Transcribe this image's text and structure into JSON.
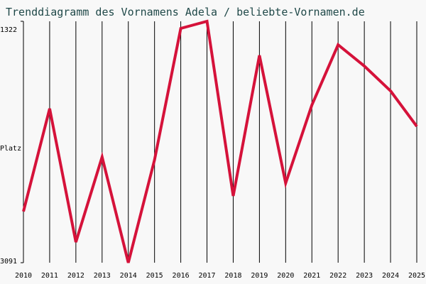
{
  "chart_data": {
    "type": "line",
    "title": "Trenddiagramm des Vornamens Adela / beliebte-Vornamen.de",
    "y_label": "Platz",
    "categories": [
      "2010",
      "2011",
      "2012",
      "2013",
      "2014",
      "2015",
      "2016",
      "2017",
      "2018",
      "2019",
      "2020",
      "2021",
      "2022",
      "2023",
      "2024",
      "2025"
    ],
    "series": [
      {
        "name": "Adela",
        "color": "#d5123a",
        "values": [
          2716,
          1962,
          2940,
          2316,
          3091,
          2337,
          1374,
          1322,
          2602,
          1572,
          2508,
          1936,
          1494,
          1650,
          1832,
          2092
        ]
      }
    ],
    "ylim": [
      3091,
      1322
    ],
    "yticks": [
      1322,
      3091
    ],
    "grid": true
  }
}
